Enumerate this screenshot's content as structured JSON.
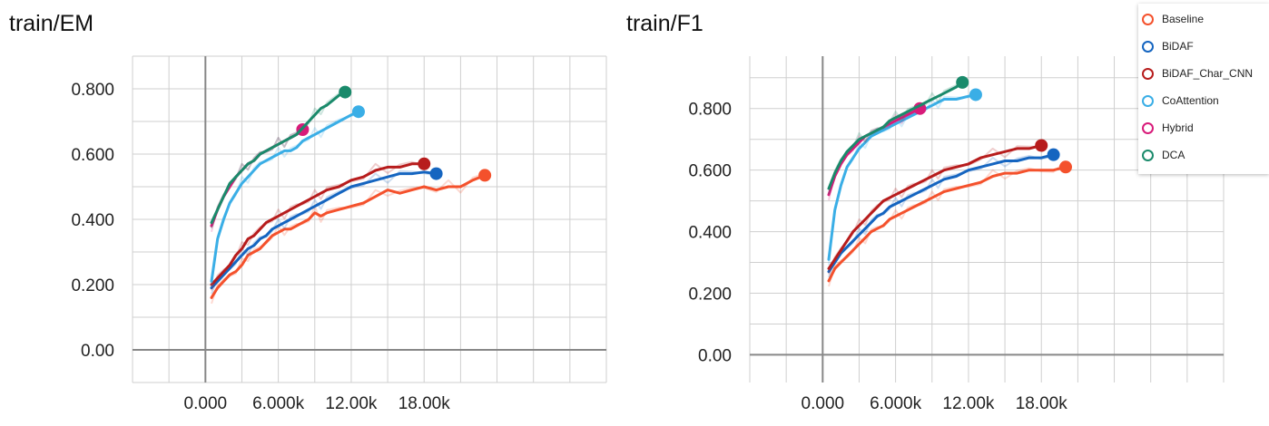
{
  "chart_data": [
    {
      "type": "line",
      "title": "train/EM",
      "xlabel": "",
      "ylabel": "",
      "x_ticks": [
        "0.000",
        "6.000k",
        "12.00k",
        "18.00k"
      ],
      "y_ticks": [
        "0.200",
        "0.400",
        "0.600",
        "0.800",
        "0.00"
      ],
      "xlim": [
        -6000,
        33000
      ],
      "ylim": [
        -0.1,
        0.9
      ],
      "grid": true,
      "series": [
        {
          "name": "Baseline",
          "color": "#f4512c",
          "x": [
            500,
            1000,
            1500,
            2000,
            2500,
            3000,
            3500,
            4000,
            4500,
            5000,
            5500,
            6000,
            6500,
            7000,
            7500,
            8000,
            8500,
            9000,
            9500,
            10000,
            11000,
            12000,
            13000,
            14000,
            15000,
            16000,
            17000,
            18000,
            19000,
            20000,
            21000,
            22000,
            23000
          ],
          "y": [
            0.16,
            0.19,
            0.21,
            0.23,
            0.24,
            0.26,
            0.29,
            0.3,
            0.31,
            0.33,
            0.35,
            0.36,
            0.37,
            0.37,
            0.38,
            0.39,
            0.4,
            0.42,
            0.41,
            0.42,
            0.43,
            0.44,
            0.45,
            0.47,
            0.49,
            0.48,
            0.49,
            0.5,
            0.49,
            0.5,
            0.5,
            0.52,
            0.535
          ]
        },
        {
          "name": "BiDAF",
          "color": "#1565c0",
          "x": [
            500,
            1000,
            1500,
            2000,
            2500,
            3000,
            3500,
            4000,
            4500,
            5000,
            5500,
            6000,
            6500,
            7000,
            7500,
            8000,
            8500,
            9000,
            9500,
            10000,
            11000,
            12000,
            13000,
            14000,
            15000,
            16000,
            17000,
            18000,
            19000
          ],
          "y": [
            0.19,
            0.21,
            0.23,
            0.25,
            0.27,
            0.29,
            0.31,
            0.32,
            0.34,
            0.35,
            0.37,
            0.38,
            0.39,
            0.4,
            0.41,
            0.42,
            0.43,
            0.44,
            0.45,
            0.46,
            0.48,
            0.5,
            0.51,
            0.52,
            0.53,
            0.54,
            0.54,
            0.545,
            0.54
          ]
        },
        {
          "name": "BiDAF_Char_CNN",
          "color": "#b71c1c",
          "x": [
            500,
            1000,
            1500,
            2000,
            2500,
            3000,
            3500,
            4000,
            4500,
            5000,
            5500,
            6000,
            6500,
            7000,
            7500,
            8000,
            8500,
            9000,
            9500,
            10000,
            11000,
            12000,
            13000,
            14000,
            15000,
            16000,
            17000,
            18000
          ],
          "y": [
            0.2,
            0.22,
            0.24,
            0.26,
            0.29,
            0.31,
            0.34,
            0.35,
            0.37,
            0.39,
            0.4,
            0.41,
            0.42,
            0.43,
            0.44,
            0.45,
            0.46,
            0.47,
            0.48,
            0.49,
            0.5,
            0.52,
            0.53,
            0.55,
            0.56,
            0.56,
            0.57,
            0.57
          ]
        },
        {
          "name": "CoAttention",
          "color": "#3aaee6",
          "x": [
            500,
            1000,
            1500,
            2000,
            2500,
            3000,
            3500,
            4000,
            4500,
            5000,
            5500,
            6000,
            6500,
            7000,
            7500,
            8000,
            8500,
            9000,
            9500,
            10000,
            11000,
            12000,
            12600
          ],
          "y": [
            0.21,
            0.34,
            0.4,
            0.45,
            0.48,
            0.51,
            0.53,
            0.55,
            0.57,
            0.58,
            0.59,
            0.6,
            0.61,
            0.61,
            0.62,
            0.64,
            0.65,
            0.66,
            0.67,
            0.68,
            0.7,
            0.72,
            0.73
          ]
        },
        {
          "name": "Hybrid",
          "color": "#d81b7a",
          "x": [
            500,
            1000,
            1500,
            2000,
            2500,
            3000,
            3500,
            4000,
            4500,
            5000,
            5500,
            6000,
            6500,
            7000,
            7500,
            8000
          ],
          "y": [
            0.38,
            0.43,
            0.47,
            0.5,
            0.53,
            0.55,
            0.57,
            0.58,
            0.6,
            0.61,
            0.62,
            0.63,
            0.64,
            0.65,
            0.66,
            0.675
          ]
        },
        {
          "name": "DCA",
          "color": "#1a8a6b",
          "x": [
            500,
            1000,
            1500,
            2000,
            2500,
            3000,
            3500,
            4000,
            4500,
            5000,
            5500,
            6000,
            6500,
            7000,
            7500,
            8000,
            8500,
            9000,
            9500,
            10000,
            11000,
            11500
          ],
          "y": [
            0.39,
            0.43,
            0.47,
            0.51,
            0.53,
            0.55,
            0.57,
            0.58,
            0.6,
            0.61,
            0.62,
            0.63,
            0.64,
            0.65,
            0.66,
            0.68,
            0.7,
            0.72,
            0.74,
            0.75,
            0.78,
            0.79
          ]
        }
      ]
    },
    {
      "type": "line",
      "title": "train/F1",
      "xlabel": "",
      "ylabel": "",
      "x_ticks": [
        "0.000",
        "6.000k",
        "12.00k",
        "18.00k"
      ],
      "y_ticks": [
        "0.200",
        "0.400",
        "0.600",
        "0.800",
        "0.00"
      ],
      "xlim": [
        -6000,
        33000
      ],
      "ylim": [
        -0.09,
        0.97
      ],
      "grid": true,
      "series": [
        {
          "name": "Baseline",
          "color": "#f4512c",
          "x": [
            500,
            1000,
            1500,
            2000,
            2500,
            3000,
            3500,
            4000,
            4500,
            5000,
            5500,
            6000,
            6500,
            7000,
            7500,
            8000,
            8500,
            9000,
            9500,
            10000,
            11000,
            12000,
            13000,
            14000,
            15000,
            16000,
            17000,
            18000,
            19000,
            20000
          ],
          "y": [
            0.24,
            0.28,
            0.3,
            0.32,
            0.34,
            0.36,
            0.38,
            0.4,
            0.41,
            0.42,
            0.44,
            0.45,
            0.46,
            0.47,
            0.48,
            0.49,
            0.5,
            0.51,
            0.52,
            0.53,
            0.54,
            0.55,
            0.56,
            0.58,
            0.59,
            0.59,
            0.6,
            0.6,
            0.6,
            0.61
          ]
        },
        {
          "name": "BiDAF",
          "color": "#1565c0",
          "x": [
            500,
            1000,
            1500,
            2000,
            2500,
            3000,
            3500,
            4000,
            4500,
            5000,
            5500,
            6000,
            6500,
            7000,
            7500,
            8000,
            8500,
            9000,
            9500,
            10000,
            11000,
            12000,
            13000,
            14000,
            15000,
            16000,
            17000,
            18000,
            19000
          ],
          "y": [
            0.27,
            0.3,
            0.33,
            0.35,
            0.37,
            0.39,
            0.41,
            0.43,
            0.45,
            0.46,
            0.48,
            0.49,
            0.5,
            0.51,
            0.52,
            0.53,
            0.54,
            0.55,
            0.56,
            0.57,
            0.58,
            0.6,
            0.61,
            0.62,
            0.63,
            0.63,
            0.64,
            0.64,
            0.65
          ]
        },
        {
          "name": "BiDAF_Char_CNN",
          "color": "#b71c1c",
          "x": [
            500,
            1000,
            1500,
            2000,
            2500,
            3000,
            3500,
            4000,
            4500,
            5000,
            5500,
            6000,
            6500,
            7000,
            7500,
            8000,
            8500,
            9000,
            9500,
            10000,
            11000,
            12000,
            13000,
            14000,
            15000,
            16000,
            17000,
            18000
          ],
          "y": [
            0.28,
            0.31,
            0.34,
            0.37,
            0.4,
            0.42,
            0.44,
            0.46,
            0.48,
            0.5,
            0.51,
            0.52,
            0.53,
            0.54,
            0.55,
            0.56,
            0.57,
            0.58,
            0.59,
            0.6,
            0.61,
            0.62,
            0.64,
            0.65,
            0.66,
            0.67,
            0.67,
            0.68
          ]
        },
        {
          "name": "CoAttention",
          "color": "#3aaee6",
          "x": [
            500,
            1000,
            1500,
            2000,
            2500,
            3000,
            3500,
            4000,
            4500,
            5000,
            5500,
            6000,
            6500,
            7000,
            7500,
            8000,
            8500,
            9000,
            9500,
            10000,
            11000,
            12000,
            12600
          ],
          "y": [
            0.31,
            0.47,
            0.55,
            0.61,
            0.64,
            0.67,
            0.69,
            0.71,
            0.72,
            0.73,
            0.74,
            0.75,
            0.76,
            0.77,
            0.78,
            0.79,
            0.8,
            0.81,
            0.82,
            0.83,
            0.83,
            0.84,
            0.845
          ]
        },
        {
          "name": "Hybrid",
          "color": "#d81b7a",
          "x": [
            500,
            1000,
            1500,
            2000,
            2500,
            3000,
            3500,
            4000,
            4500,
            5000,
            5500,
            6000,
            6500,
            7000,
            7500,
            8000
          ],
          "y": [
            0.52,
            0.58,
            0.62,
            0.65,
            0.67,
            0.69,
            0.71,
            0.72,
            0.73,
            0.74,
            0.75,
            0.76,
            0.77,
            0.78,
            0.79,
            0.8
          ]
        },
        {
          "name": "DCA",
          "color": "#1a8a6b",
          "x": [
            500,
            1000,
            1500,
            2000,
            2500,
            3000,
            3500,
            4000,
            4500,
            5000,
            5500,
            6000,
            6500,
            7000,
            7500,
            8000,
            8500,
            9000,
            9500,
            10000,
            11000,
            11500
          ],
          "y": [
            0.54,
            0.59,
            0.63,
            0.66,
            0.68,
            0.7,
            0.71,
            0.72,
            0.73,
            0.74,
            0.76,
            0.77,
            0.78,
            0.79,
            0.8,
            0.81,
            0.82,
            0.83,
            0.84,
            0.85,
            0.87,
            0.885
          ]
        }
      ]
    }
  ],
  "legend": {
    "position": "top-right",
    "items": [
      {
        "label": "Baseline",
        "color": "#f4512c"
      },
      {
        "label": "BiDAF",
        "color": "#1565c0"
      },
      {
        "label": "BiDAF_Char_CNN",
        "color": "#b71c1c"
      },
      {
        "label": "CoAttention",
        "color": "#3aaee6"
      },
      {
        "label": "Hybrid",
        "color": "#d81b7a"
      },
      {
        "label": "DCA",
        "color": "#1a8a6b"
      }
    ]
  }
}
